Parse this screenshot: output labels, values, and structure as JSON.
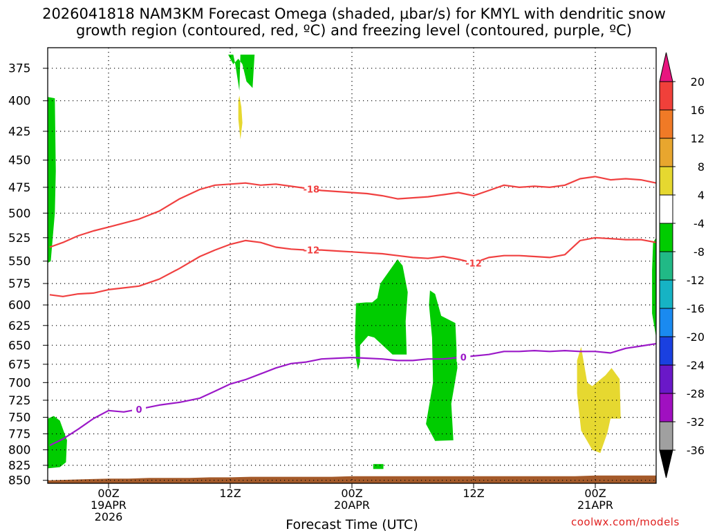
{
  "chart_data": {
    "type": "heatmap",
    "title_line1": "2026041818 NAM3KM Forecast Omega (shaded, µbar/s) for KMYL with dendritic snow",
    "title_line2": "growth region (contoured, red, ºC) and freezing level (contoured, purple, ºC)",
    "xlabel": "Forecast Time (UTC)",
    "credit": "coolwx.com/models",
    "x_units": "forecast hours from 2026041818",
    "xlim": [
      0,
      60
    ],
    "ylim": [
      360,
      855
    ],
    "y_scale": "pressure (hPa), log",
    "y_ticks": [
      375,
      400,
      425,
      450,
      475,
      500,
      525,
      550,
      575,
      600,
      625,
      650,
      675,
      700,
      725,
      750,
      775,
      800,
      825,
      850
    ],
    "x_ticks": [
      {
        "hour": 6,
        "lines": [
          "00Z",
          "19APR",
          "2026"
        ]
      },
      {
        "hour": 18,
        "lines": [
          "12Z"
        ]
      },
      {
        "hour": 30,
        "lines": [
          "00Z",
          "20APR"
        ]
      },
      {
        "hour": 42,
        "lines": [
          "12Z"
        ]
      },
      {
        "hour": 54,
        "lines": [
          "00Z",
          "21APR"
        ]
      }
    ],
    "colorbar": {
      "labels": [
        "20",
        "16",
        "12",
        "8",
        "4",
        "-4",
        "-8",
        "-12",
        "-16",
        "-20",
        "-24",
        "-28",
        "-32",
        "-36"
      ],
      "colors": [
        "#e8157f",
        "#f0403a",
        "#f07a26",
        "#e8a62e",
        "#e6d830",
        "#ffffff",
        "#00cc00",
        "#21b986",
        "#16b3c4",
        "#1a8af0",
        "#1a40e0",
        "#6a18c8",
        "#a010c0",
        "#a0a0a0",
        "#000000"
      ]
    },
    "contours": [
      {
        "name": "-18 ºC",
        "label": "-18",
        "color": "#f04040",
        "x": [
          0.2,
          1.5,
          3,
          4.5,
          6,
          7.5,
          9,
          11,
          13,
          15,
          16.5,
          18,
          19.5,
          21,
          22.5,
          24,
          25.5,
          27,
          28.5,
          30,
          31.5,
          33,
          34.5,
          36,
          37.5,
          39,
          40.5,
          42,
          43.5,
          45,
          46.5,
          48,
          49.5,
          51,
          52.5,
          54,
          55.5,
          57,
          58.5,
          60
        ],
        "p": [
          535,
          530,
          523,
          518,
          514,
          510,
          506,
          498,
          486,
          477,
          473,
          472,
          471,
          473,
          472,
          474,
          476,
          478,
          479,
          480,
          481,
          483,
          486,
          485,
          484,
          482,
          480,
          483,
          478,
          473,
          475,
          474,
          475,
          473,
          467,
          465,
          468,
          467,
          468,
          471
        ]
      },
      {
        "name": "-12 ºC",
        "label": "-12",
        "color": "#f04040",
        "x": [
          0.2,
          1.5,
          3,
          4.5,
          6,
          7.5,
          9,
          11,
          13,
          15,
          16.5,
          18,
          19.5,
          21,
          22.5,
          24,
          25.5,
          27,
          28.5,
          30,
          31.5,
          33,
          34.5,
          36,
          37.5,
          39,
          40.5,
          42,
          43.5,
          45,
          46.5,
          48,
          49.5,
          51,
          52.5,
          54,
          55.5,
          57,
          58.5,
          60
        ],
        "p": [
          588,
          590,
          587,
          586,
          582,
          580,
          578,
          570,
          558,
          545,
          538,
          532,
          528,
          530,
          535,
          537,
          538,
          538,
          539,
          540,
          541,
          542,
          544,
          546,
          547,
          545,
          548,
          552,
          546,
          544,
          544,
          545,
          546,
          543,
          528,
          525,
          526,
          527,
          527,
          530
        ]
      },
      {
        "name": "0 ºC",
        "label": "0",
        "color": "#9b18c8",
        "x": [
          0.2,
          1.5,
          3,
          4.5,
          6,
          7.5,
          9,
          11,
          13,
          15,
          16.5,
          18,
          19.5,
          21,
          22.5,
          24,
          25.5,
          27,
          28.5,
          30,
          31.5,
          33,
          34.5,
          36,
          37.5,
          39,
          40.5,
          42,
          43.5,
          45,
          46.5,
          48,
          49.5,
          51,
          52.5,
          54,
          55.5,
          57,
          58.5,
          60
        ],
        "p": [
          793,
          783,
          768,
          752,
          740,
          742,
          738,
          732,
          728,
          722,
          712,
          702,
          696,
          688,
          680,
          674,
          672,
          668,
          667,
          666,
          667,
          668,
          670,
          670,
          668,
          668,
          666,
          664,
          662,
          658,
          658,
          657,
          658,
          657,
          658,
          658,
          660,
          654,
          651,
          648
        ]
      }
    ],
    "shaded_regions": [
      {
        "name": "omega -8 to -4",
        "color": "#00cc00",
        "polygons": [
          [
            [
              0,
              397
            ],
            [
              0.7,
              398
            ],
            [
              0.8,
              460
            ],
            [
              0.7,
              500
            ],
            [
              0.3,
              550
            ],
            [
              0,
              552
            ]
          ],
          [
            [
              0,
              752
            ],
            [
              0.6,
              748
            ],
            [
              1.2,
              755
            ],
            [
              1.9,
              785
            ],
            [
              1.8,
              820
            ],
            [
              1.2,
              828
            ],
            [
              0,
              830
            ]
          ],
          [
            [
              17.8,
              365
            ],
            [
              18.3,
              365
            ],
            [
              18.5,
              372
            ],
            [
              18.9,
              392
            ],
            [
              19,
              365
            ],
            [
              20.4,
              365
            ],
            [
              20.2,
              390
            ],
            [
              19.6,
              385
            ],
            [
              19.2,
              372
            ],
            [
              18.8,
              368
            ],
            [
              18.3,
              372
            ],
            [
              18,
              368
            ]
          ],
          [
            [
              30.4,
              598
            ],
            [
              31.4,
              597
            ],
            [
              32,
              597
            ],
            [
              32.5,
              592
            ],
            [
              32.8,
              575
            ],
            [
              34.5,
              548
            ],
            [
              35,
              555
            ],
            [
              35.5,
              585
            ],
            [
              35.3,
              620
            ],
            [
              35.4,
              662
            ],
            [
              34,
              662
            ],
            [
              32.2,
              640
            ],
            [
              31.6,
              638
            ],
            [
              30.8,
              650
            ],
            [
              30.8,
              672
            ],
            [
              30.6,
              683
            ],
            [
              30.4,
              668
            ],
            [
              30.3,
              640
            ]
          ],
          [
            [
              37.7,
              583
            ],
            [
              38.2,
              587
            ],
            [
              38.8,
              613
            ],
            [
              40.2,
              622
            ],
            [
              40.4,
              680
            ],
            [
              39.8,
              730
            ],
            [
              40,
              785
            ],
            [
              38.2,
              786
            ],
            [
              37.3,
              760
            ],
            [
              38,
              700
            ],
            [
              37.9,
              640
            ],
            [
              37.6,
              600
            ]
          ],
          [
            [
              59.7,
              530
            ],
            [
              60,
              525
            ],
            [
              60,
              640
            ],
            [
              59.6,
              610
            ],
            [
              59.6,
              560
            ]
          ],
          [
            [
              32.1,
              823
            ],
            [
              33.1,
              823
            ],
            [
              33.1,
              831
            ],
            [
              32.1,
              831
            ]
          ]
        ]
      },
      {
        "name": "omega 4 to 8",
        "color": "#e6d830",
        "polygons": [
          [
            [
              18.9,
              396
            ],
            [
              19.1,
              405
            ],
            [
              19.2,
              418
            ],
            [
              19,
              432
            ],
            [
              18.8,
              415
            ],
            [
              18.8,
              400
            ]
          ],
          [
            [
              52.2,
              670
            ],
            [
              52.6,
              652
            ],
            [
              53.2,
              700
            ],
            [
              53.7,
              705
            ],
            [
              55,
              690
            ],
            [
              55.6,
              680
            ],
            [
              56.4,
              695
            ],
            [
              56.5,
              752
            ],
            [
              55.5,
              752
            ],
            [
              55.2,
              773
            ],
            [
              54.5,
              805
            ],
            [
              53.7,
              800
            ],
            [
              52.6,
              770
            ],
            [
              52.2,
              715
            ]
          ]
        ]
      }
    ],
    "terrain": {
      "name": "ground",
      "color": "#a45a2a",
      "x": [
        0,
        2,
        4,
        6,
        8,
        10,
        12,
        14,
        16,
        18,
        20,
        22,
        24,
        26,
        28,
        30,
        32,
        34,
        36,
        38,
        40,
        42,
        44,
        46,
        48,
        50,
        52,
        54,
        56,
        58,
        60
      ],
      "p": [
        850,
        849,
        848,
        847,
        847,
        846,
        846,
        846,
        845,
        845,
        844,
        844,
        844,
        844,
        844,
        843,
        843,
        843,
        843,
        843,
        843,
        843,
        843,
        843,
        843,
        843,
        843,
        842,
        842,
        842,
        842
      ]
    }
  }
}
